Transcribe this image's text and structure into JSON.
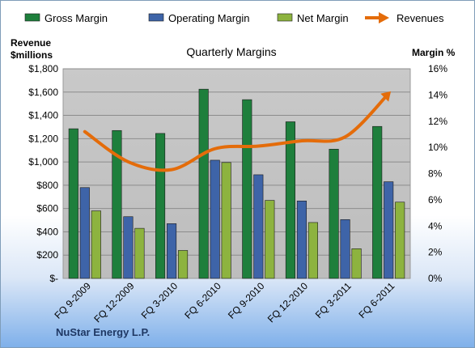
{
  "chart_data": {
    "type": "bar",
    "title": "Quarterly Margins",
    "ylabel": "Revenue\n$millions",
    "y2label": "Margin %",
    "company": "NuStar Energy L.P.",
    "categories": [
      "FQ 9-2009",
      "FQ 12-2009",
      "FQ 3-2010",
      "FQ 6-2010",
      "FQ 9-2010",
      "FQ 12-2010",
      "FQ 3-2011",
      "FQ 6-2011"
    ],
    "ylim": [
      0,
      1800
    ],
    "y2lim": [
      0,
      16
    ],
    "yticks": [
      "$-",
      "$200",
      "$400",
      "$600",
      "$800",
      "$1,000",
      "$1,200",
      "$1,400",
      "$1,600",
      "$1,800"
    ],
    "y2ticks": [
      "0%",
      "2%",
      "4%",
      "6%",
      "8%",
      "10%",
      "12%",
      "14%",
      "16%"
    ],
    "legend_position": "top",
    "grid": true,
    "series": [
      {
        "name": "Gross Margin",
        "axis": "left",
        "kind": "bar",
        "color": "#1e7f3c",
        "values": [
          1285,
          1270,
          1245,
          1625,
          1535,
          1345,
          1110,
          1305
        ]
      },
      {
        "name": "Operating Margin",
        "axis": "left",
        "kind": "bar",
        "color": "#3e64a8",
        "values": [
          780,
          530,
          470,
          1015,
          890,
          665,
          505,
          830
        ]
      },
      {
        "name": "Net Margin",
        "axis": "left",
        "kind": "bar",
        "color": "#8db33f",
        "values": [
          580,
          430,
          240,
          995,
          670,
          480,
          255,
          655
        ]
      },
      {
        "name": "Revenues",
        "axis": "right",
        "kind": "line",
        "color": "#e46c0a",
        "values": [
          11.2,
          8.9,
          8.3,
          9.9,
          10.1,
          10.5,
          10.8,
          14.1
        ]
      }
    ]
  }
}
